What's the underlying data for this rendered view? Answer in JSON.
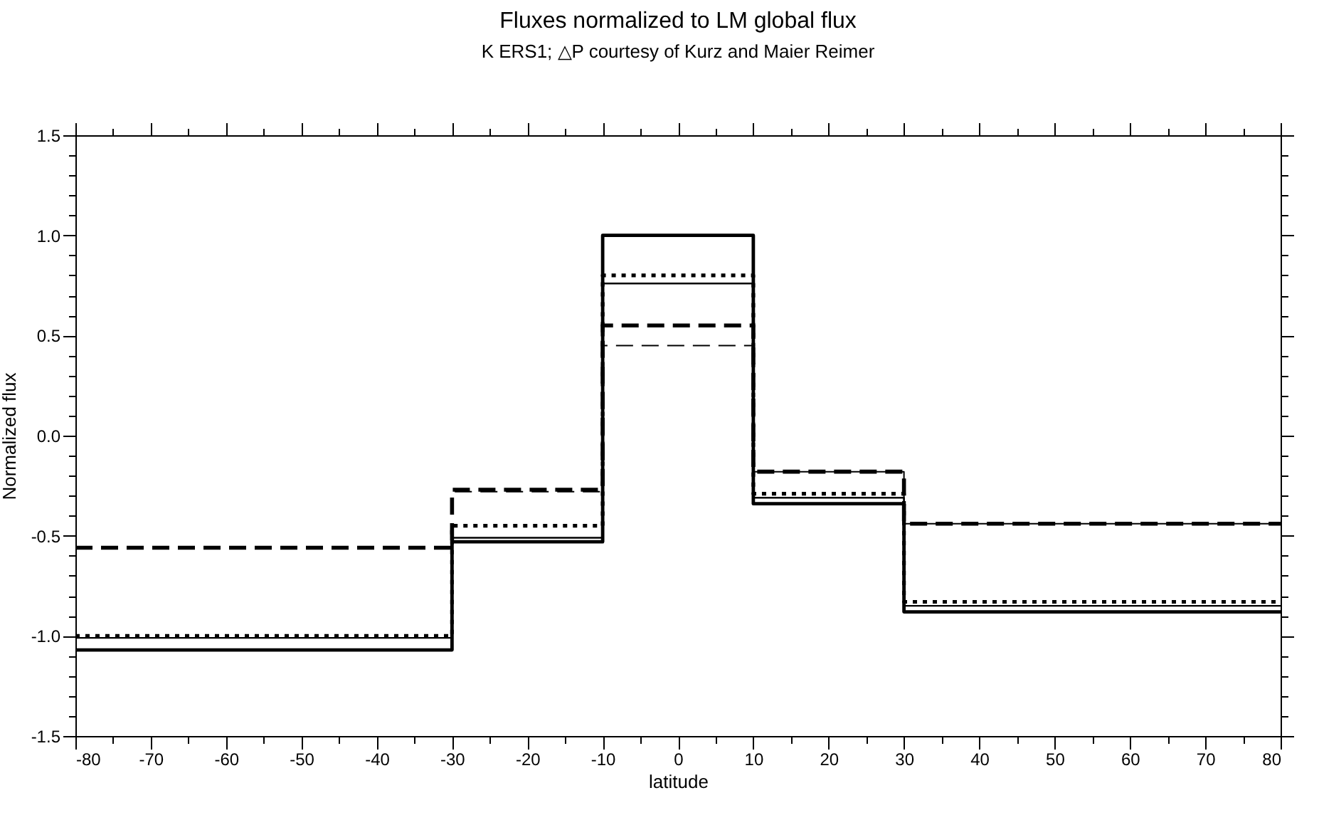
{
  "chart_data": {
    "type": "step",
    "title": "Fluxes normalized to LM global flux",
    "subtitle": "K ERS1; △P courtesy of Kurz and Maier Reimer",
    "xlabel": "latitude",
    "ylabel": "Normalized flux",
    "x": [
      -80,
      -30,
      -10,
      10,
      30,
      80
    ],
    "series": [
      {
        "color": "#000000",
        "line_style": "solid",
        "values": [
          -1.07,
          -0.53,
          1.0,
          -0.34,
          -0.88,
          -0.88
        ]
      },
      {
        "color": "#000000",
        "line_style": "solid",
        "values": [
          -1.01,
          -0.51,
          0.76,
          -0.31,
          -0.85,
          -0.85
        ]
      },
      {
        "color": "#000000",
        "line_style": "dotted",
        "values": [
          -1.0,
          -0.45,
          0.8,
          -0.29,
          -0.83,
          -0.83
        ]
      },
      {
        "color": "#000000",
        "line_style": "dashed",
        "values": [
          -0.56,
          -0.27,
          0.55,
          -0.18,
          -0.44,
          -0.44
        ]
      },
      {
        "color": "#000000",
        "line_style": "dashed",
        "values": [
          -0.56,
          -0.28,
          0.45,
          -0.18,
          -0.44,
          -0.44
        ]
      }
    ],
    "xlim": [
      -80,
      80
    ],
    "xticks": [
      -80,
      {
        "value": -75,
        "label": null
      },
      -70,
      {
        "value": -65,
        "label": null
      },
      -60,
      {
        "value": -55,
        "label": null
      },
      -50,
      {
        "value": -45,
        "label": null
      },
      -40,
      {
        "value": -35,
        "label": null
      },
      -30,
      {
        "value": -25,
        "label": null
      },
      -20,
      {
        "value": -15,
        "label": null
      },
      -10,
      {
        "value": -5,
        "label": null
      },
      0,
      {
        "value": 5,
        "label": null
      },
      10,
      {
        "value": 15,
        "label": null
      },
      20,
      {
        "value": 25,
        "label": null
      },
      30,
      {
        "value": 35,
        "label": null
      },
      40,
      {
        "value": 45,
        "label": null
      },
      50,
      {
        "value": 55,
        "label": null
      },
      60,
      {
        "value": 65,
        "label": null
      },
      70,
      {
        "value": 75,
        "label": null
      },
      80
    ],
    "ylim": [
      -1.5,
      1.5
    ],
    "yticks": [
      {
        "value": -1.5,
        "label": "-1.5"
      },
      {
        "value": -1.4,
        "label": null
      },
      {
        "value": -1.3,
        "label": null
      },
      {
        "value": -1.2,
        "label": null
      },
      {
        "value": -1.1,
        "label": null
      },
      {
        "value": -1.0,
        "label": "-1.0"
      },
      {
        "value": -0.9,
        "label": null
      },
      {
        "value": -0.8,
        "label": null
      },
      {
        "value": -0.7,
        "label": null
      },
      {
        "value": -0.6,
        "label": null
      },
      {
        "value": -0.5,
        "label": "-0.5"
      },
      {
        "value": -0.4,
        "label": null
      },
      {
        "value": -0.3,
        "label": null
      },
      {
        "value": -0.2,
        "label": null
      },
      {
        "value": -0.1,
        "label": null
      },
      {
        "value": 0.0,
        "label": "0.0"
      },
      {
        "value": 0.1,
        "label": null
      },
      {
        "value": 0.2,
        "label": null
      },
      {
        "value": 0.3,
        "label": null
      },
      {
        "value": 0.4,
        "label": null
      },
      {
        "value": 0.5,
        "label": "0.5"
      },
      {
        "value": 0.6,
        "label": null
      },
      {
        "value": 0.7,
        "label": null
      },
      {
        "value": 0.8,
        "label": null
      },
      {
        "value": 0.9,
        "label": null
      },
      {
        "value": 1.0,
        "label": "1.0"
      },
      {
        "value": 1.1,
        "label": null
      },
      {
        "value": 1.2,
        "label": null
      },
      {
        "value": 1.3,
        "label": null
      },
      {
        "value": 1.4,
        "label": null
      },
      {
        "value": 1.5,
        "label": "1.5"
      }
    ],
    "marker": "none"
  }
}
